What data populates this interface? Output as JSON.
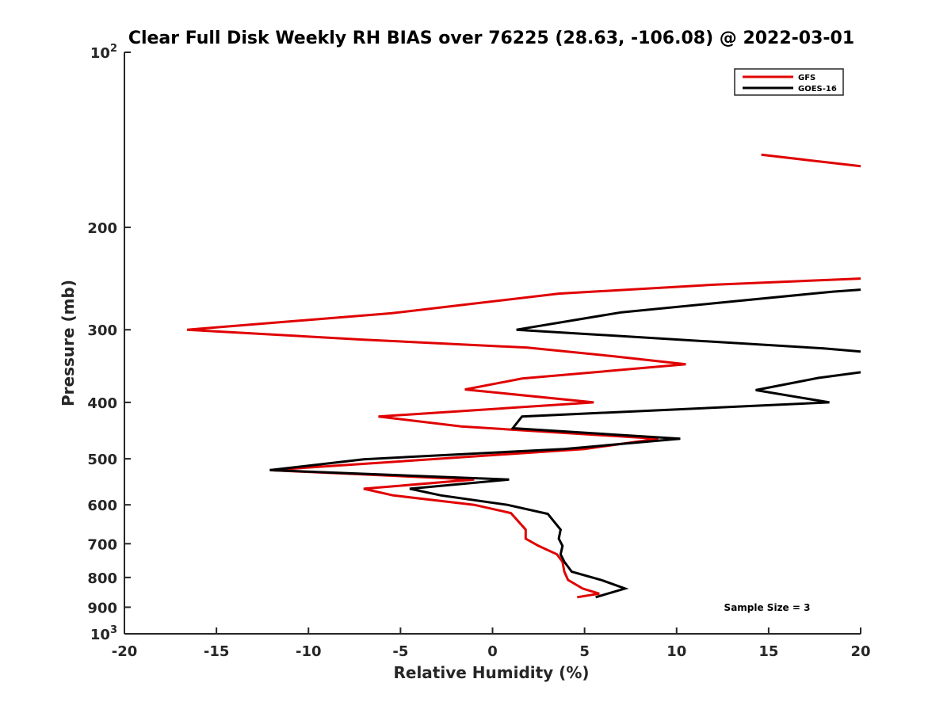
{
  "chart_data": {
    "type": "line",
    "title": "Clear Full Disk Weekly RH BIAS over 76225 (28.63, -106.08) @ 2022-03-01",
    "xlabel": "Relative Humidity (%)",
    "ylabel": "Pressure (mb)",
    "xlim": [
      -20,
      20
    ],
    "ylim": [
      100,
      1000
    ],
    "yscale": "log",
    "y_reversed": true,
    "grid": false,
    "legend_position": "top-right",
    "x_ticks": [
      -20,
      -15,
      -10,
      -5,
      0,
      5,
      10,
      15,
      20
    ],
    "y_ticks": [
      {
        "value": 100,
        "base": "10",
        "exp": "2"
      },
      {
        "value": 200,
        "label": "200"
      },
      {
        "value": 300,
        "label": "300"
      },
      {
        "value": 400,
        "label": "400"
      },
      {
        "value": 500,
        "label": "500"
      },
      {
        "value": 600,
        "label": "600"
      },
      {
        "value": 700,
        "label": "700"
      },
      {
        "value": 800,
        "label": "800"
      },
      {
        "value": 900,
        "label": "900"
      },
      {
        "value": 1000,
        "base": "10",
        "exp": "3"
      }
    ],
    "annotation": "Sample Size = 3",
    "series": [
      {
        "name": "GFS",
        "color": "#e00000",
        "segments": [
          [
            [
              14.6,
              150
            ],
            [
              20,
              157
            ]
          ],
          [
            [
              20,
              245
            ],
            [
              12,
              251
            ],
            [
              3.6,
              260
            ],
            [
              -5.5,
              281
            ],
            [
              -16.6,
              300
            ],
            [
              -7,
              312
            ],
            [
              1.9,
              322
            ],
            [
              6.5,
              333
            ],
            [
              10.5,
              344
            ],
            [
              1.6,
              364
            ],
            [
              -1.5,
              380
            ],
            [
              5.5,
              400
            ],
            [
              -6.2,
              423
            ],
            [
              -1.7,
              440
            ],
            [
              9,
              462
            ],
            [
              5,
              481
            ],
            [
              -12.1,
              523
            ],
            [
              -1,
              543
            ],
            [
              -7,
              563
            ],
            [
              -5.4,
              578
            ],
            [
              -1,
              600
            ],
            [
              1,
              620
            ],
            [
              1.8,
              662
            ],
            [
              1.8,
              686
            ],
            [
              2.5,
              706
            ],
            [
              3.5,
              730
            ],
            [
              3.8,
              752
            ],
            [
              3.9,
              782
            ],
            [
              4.1,
              808
            ],
            [
              4.9,
              836
            ],
            [
              5.8,
              853
            ],
            [
              4.6,
              865
            ]
          ]
        ]
      },
      {
        "name": "GOES-16",
        "color": "#000000",
        "segments": [
          [
            [
              20,
              256
            ],
            [
              18.5,
              258
            ],
            [
              7,
              280
            ],
            [
              1.3,
              300
            ],
            [
              18,
              323
            ],
            [
              20,
              327
            ]
          ],
          [
            [
              20,
              355
            ],
            [
              17.7,
              363
            ],
            [
              14.3,
              381
            ],
            [
              18.3,
              400
            ],
            [
              1.6,
              423
            ],
            [
              1.1,
              443
            ],
            [
              10.2,
              462
            ],
            [
              3.9,
              481
            ],
            [
              -7,
              501
            ],
            [
              -12.1,
              523
            ],
            [
              0.9,
              543
            ],
            [
              -4.5,
              563
            ],
            [
              -2.8,
              578
            ],
            [
              0.8,
              600
            ],
            [
              3,
              622
            ],
            [
              3.7,
              662
            ],
            [
              3.6,
              686
            ],
            [
              3.8,
              706
            ],
            [
              3.7,
              730
            ],
            [
              3.9,
              752
            ],
            [
              4.3,
              782
            ],
            [
              5.9,
              808
            ],
            [
              7.2,
              836
            ],
            [
              5.6,
              865
            ]
          ]
        ]
      }
    ]
  }
}
